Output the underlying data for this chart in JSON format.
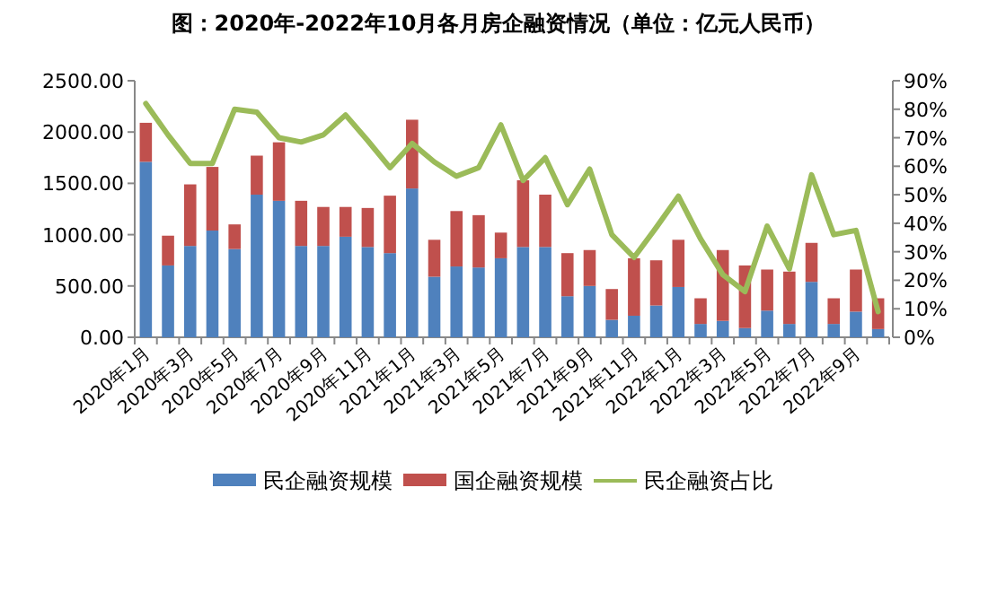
{
  "chart_data": {
    "type": "bar",
    "stacked": true,
    "title": "图：2020年-2022年10月各月房企融资情况（单位：亿元人民币）",
    "categories": [
      "2020年1月",
      null,
      "2020年3月",
      null,
      "2020年5月",
      null,
      "2020年7月",
      null,
      "2020年9月",
      null,
      "2020年11月",
      null,
      "2021年1月",
      null,
      "2021年3月",
      null,
      "2021年5月",
      null,
      "2021年7月",
      null,
      "2021年9月",
      null,
      "2021年11月",
      null,
      "2022年1月",
      null,
      "2022年3月",
      null,
      "2022年5月",
      null,
      "2022年7月",
      null,
      "2022年9月",
      null
    ],
    "series": [
      {
        "name": "民企融资规模",
        "color": "#4f81bd",
        "values": [
          1710,
          700,
          890,
          1040,
          860,
          1390,
          1330,
          890,
          890,
          980,
          880,
          820,
          1450,
          590,
          690,
          680,
          770,
          880,
          880,
          400,
          500,
          170,
          210,
          310,
          490,
          130,
          160,
          90,
          260,
          130,
          540,
          130,
          250,
          80
        ]
      },
      {
        "name": "国企融资规模",
        "color": "#c0504d",
        "values": [
          380,
          290,
          600,
          620,
          240,
          380,
          570,
          440,
          380,
          290,
          380,
          560,
          670,
          360,
          540,
          510,
          250,
          650,
          510,
          420,
          350,
          300,
          560,
          440,
          460,
          250,
          690,
          610,
          400,
          510,
          380,
          250,
          410,
          300
        ]
      },
      {
        "name": "民企融资占比",
        "type": "line",
        "axis": "y2",
        "color": "#9bbb59",
        "values": [
          82,
          71,
          61,
          61,
          80,
          79,
          70,
          68.5,
          71,
          78,
          69,
          59.5,
          68,
          61.5,
          56.5,
          59.5,
          74.5,
          55,
          63,
          46.5,
          59,
          36,
          28,
          38.5,
          49.5,
          34.5,
          22,
          16,
          39,
          24,
          57,
          36,
          37.5,
          9
        ]
      }
    ],
    "ylim": [
      0,
      2500
    ],
    "yticks": [
      {
        "value": 0,
        "label": "0.00"
      },
      {
        "value": 500,
        "label": "500.00"
      },
      {
        "value": 1000,
        "label": "1000.00"
      },
      {
        "value": 1500,
        "label": "1500.00"
      },
      {
        "value": 2000,
        "label": "2000.00"
      },
      {
        "value": 2500,
        "label": "2500.00"
      }
    ],
    "y2lim": [
      0,
      90
    ],
    "y2ticks": [
      {
        "value": 0,
        "label": "0%"
      },
      {
        "value": 10,
        "label": "10%"
      },
      {
        "value": 20,
        "label": "20%"
      },
      {
        "value": 30,
        "label": "30%"
      },
      {
        "value": 40,
        "label": "40%"
      },
      {
        "value": 50,
        "label": "50%"
      },
      {
        "value": 60,
        "label": "60%"
      },
      {
        "value": 70,
        "label": "70%"
      },
      {
        "value": 80,
        "label": "80%"
      },
      {
        "value": 90,
        "label": "90%"
      }
    ],
    "legend": "bottom"
  }
}
